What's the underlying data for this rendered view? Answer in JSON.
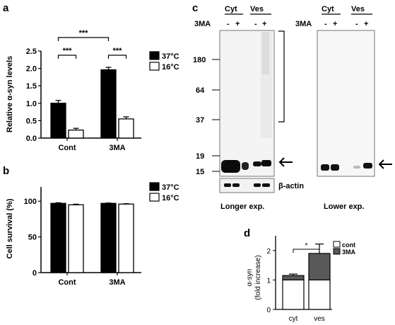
{
  "chart_data": [
    {
      "panel": "a",
      "type": "bar",
      "ylabel": "Relative α-syn levels",
      "ylim": [
        0,
        2.5
      ],
      "yticks": [
        "0.0",
        "0.5",
        "1.0",
        "1.5",
        "2.0",
        "2.5"
      ],
      "categories": [
        "Cont",
        "3MA"
      ],
      "series": [
        {
          "name": "37°C",
          "color": "#000000",
          "values": [
            1.0,
            1.96
          ],
          "errors": [
            0.08,
            0.07
          ]
        },
        {
          "name": "16°C",
          "color": "#ffffff",
          "values": [
            0.23,
            0.55
          ],
          "errors": [
            0.05,
            0.06
          ]
        }
      ],
      "significance": [
        {
          "label": "***",
          "between": "Cont 37°C vs Cont 16°C"
        },
        {
          "label": "***",
          "between": "3MA 37°C vs 3MA 16°C"
        },
        {
          "label": "***",
          "between": "Cont 37°C vs 3MA 37°C"
        }
      ],
      "legend_position": "top-right"
    },
    {
      "panel": "b",
      "type": "bar",
      "ylabel": "Cell survival (%)",
      "ylim": [
        0,
        120
      ],
      "yticks": [
        "0",
        "50",
        "100"
      ],
      "categories": [
        "Cont",
        "3MA"
      ],
      "series": [
        {
          "name": "37°C",
          "color": "#000000",
          "values": [
            97,
            97
          ],
          "errors": [
            0.8,
            0.5
          ]
        },
        {
          "name": "16°C",
          "color": "#ffffff",
          "values": [
            95,
            96
          ],
          "errors": [
            0.8,
            0.5
          ]
        }
      ],
      "legend_position": "top-right"
    },
    {
      "panel": "d",
      "type": "bar",
      "stacked": true,
      "ylabel": "α-syn\n(fold increase)",
      "ylim": [
        0,
        2.5
      ],
      "yticks": [
        "0",
        "1",
        "2"
      ],
      "categories": [
        "cyt",
        "ves"
      ],
      "series": [
        {
          "name": "cont",
          "color": "#ffffff",
          "values": [
            1.0,
            1.0
          ]
        },
        {
          "name": "3MA",
          "color": "#595959",
          "values": [
            0.15,
            0.9
          ],
          "errors": [
            0.05,
            0.32
          ]
        }
      ],
      "significance": [
        {
          "label": "*",
          "between": "cyt vs ves"
        }
      ],
      "legend_position": "top-right"
    }
  ],
  "blot": {
    "panel": "c",
    "fraction_labels": [
      "Cyt",
      "Ves"
    ],
    "treatment_label": "3MA",
    "treatment_signs": [
      "-",
      "+"
    ],
    "mw_markers": [
      "180",
      "64",
      "37",
      "19",
      "15"
    ],
    "loading_control": "β-actin",
    "exposures": [
      "Longer exp.",
      "Lower exp."
    ]
  }
}
